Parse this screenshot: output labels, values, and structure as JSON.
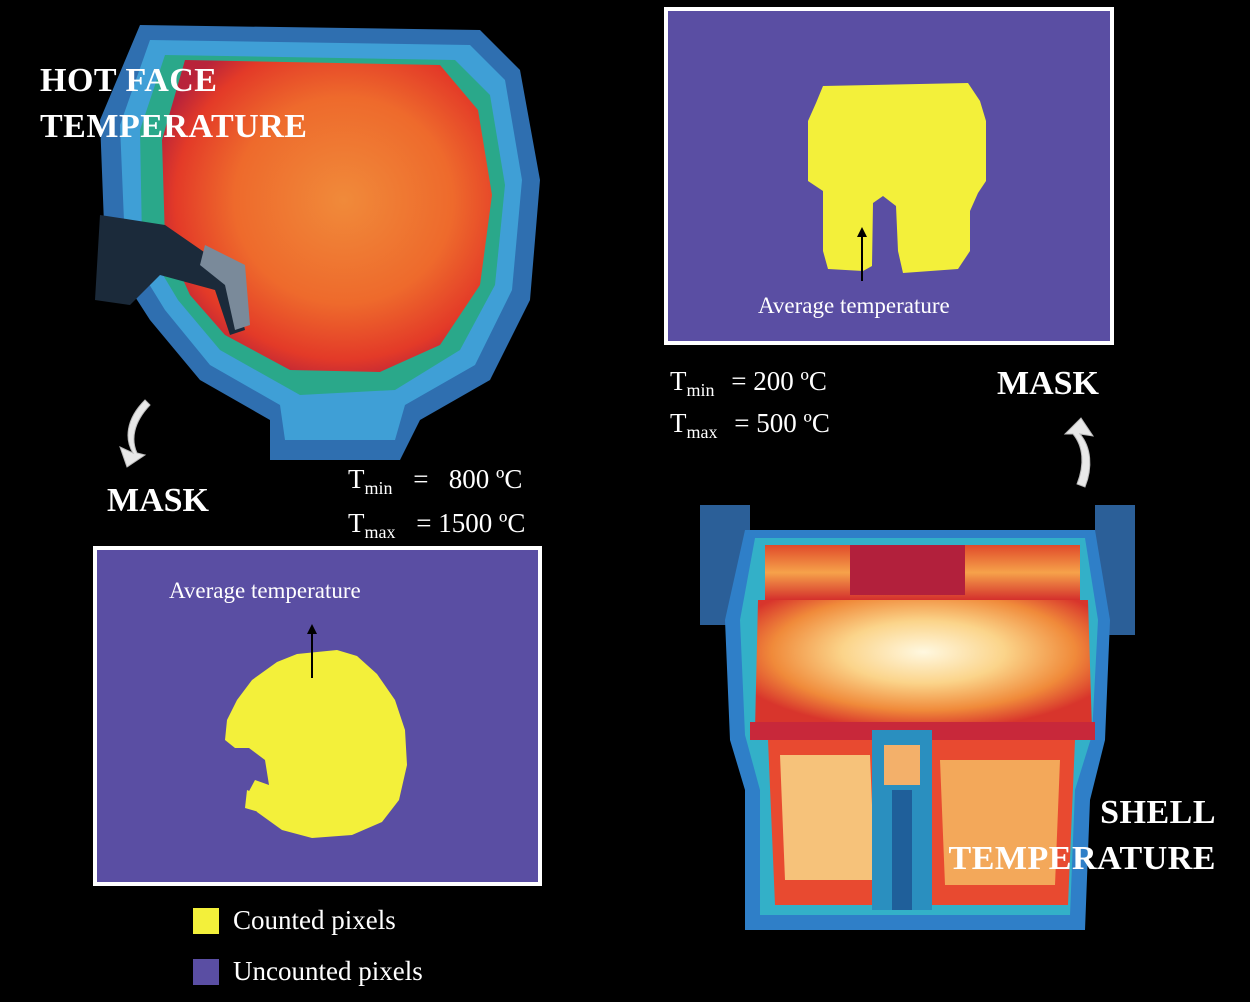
{
  "hot_face": {
    "title_line1": "HOT FACE",
    "title_line2": "TEMPERATURE",
    "mask_label": "MASK",
    "tmin_sym": "T",
    "tmin_sub": "min",
    "tmin_val": "=   800 ºC",
    "tmax_sym": "T",
    "tmax_sub": "max",
    "tmax_val": "= 1500 ºC",
    "avg_label": "Average temperature"
  },
  "shell": {
    "title_line1": "SHELL",
    "title_line2": "TEMPERATURE",
    "mask_label": "MASK",
    "tmin_sym": "T",
    "tmin_sub": "min",
    "tmin_val": "= 200 ºC",
    "tmax_sym": "T",
    "tmax_sub": "max",
    "tmax_val": "= 500 ºC",
    "avg_label": "Average temperature"
  },
  "legend": {
    "counted": "Counted pixels",
    "uncounted": "Uncounted pixels"
  },
  "colors": {
    "counted": "#f3f03a",
    "uncounted": "#5a4ea3"
  }
}
